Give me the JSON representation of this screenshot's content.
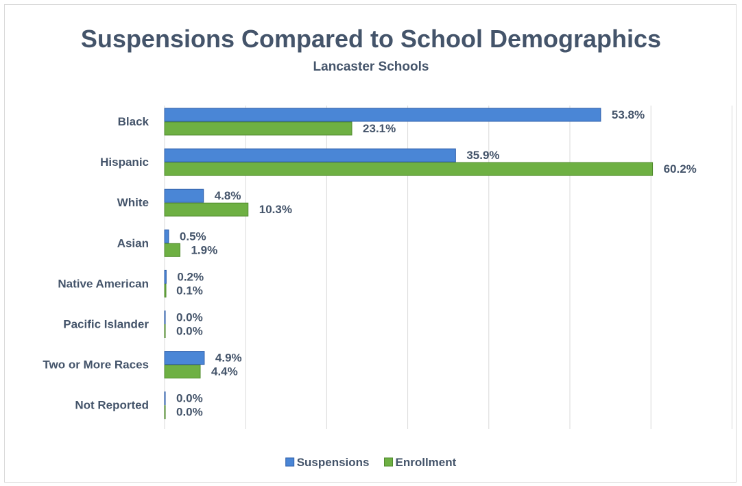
{
  "chart_data": {
    "type": "bar",
    "orientation": "horizontal",
    "title": "Suspensions Compared to School Demographics",
    "subtitle": "Lancaster Schools",
    "categories": [
      "Black",
      "Hispanic",
      "White",
      "Asian",
      "Native American",
      "Pacific Islander",
      "Two or More Races",
      "Not Reported"
    ],
    "series": [
      {
        "name": "Suspensions",
        "color": "#4a86d6",
        "values": [
          53.8,
          35.9,
          4.8,
          0.5,
          0.2,
          0.0,
          4.9,
          0.0
        ],
        "labels": [
          "53.8%",
          "35.9%",
          "4.8%",
          "0.5%",
          "0.2%",
          "0.0%",
          "4.9%",
          "0.0%"
        ]
      },
      {
        "name": "Enrollment",
        "color": "#6eb043",
        "values": [
          23.1,
          60.2,
          10.3,
          1.9,
          0.1,
          0.0,
          4.4,
          0.0
        ],
        "labels": [
          "23.1%",
          "60.2%",
          "10.3%",
          "1.9%",
          "0.1%",
          "0.0%",
          "4.4%",
          "0.0%"
        ]
      }
    ],
    "xlim": [
      0,
      70
    ],
    "x_gridline_step": 10,
    "grid": true,
    "legend_position": "bottom"
  }
}
